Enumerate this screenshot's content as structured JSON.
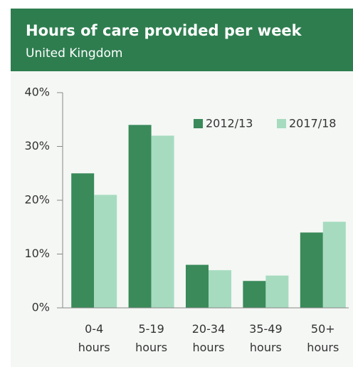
{
  "chart_data": {
    "type": "bar",
    "title": "Hours of care provided per week",
    "subtitle": "United Kingdom",
    "categories": [
      "0-4 hours",
      "5-19 hours",
      "20-34 hours",
      "35-49 hours",
      "50+ hours"
    ],
    "series": [
      {
        "name": "2012/13",
        "color": "#3a8a5a",
        "values": [
          25,
          34,
          8,
          5,
          14
        ]
      },
      {
        "name": "2017/18",
        "color": "#a6dbbf",
        "values": [
          21,
          32,
          7,
          6,
          16
        ]
      }
    ],
    "ylim": [
      0,
      40
    ],
    "yticks": [
      {
        "value": 0,
        "label": "0%"
      },
      {
        "value": 10,
        "label": "10%"
      },
      {
        "value": 20,
        "label": "20%"
      },
      {
        "value": 30,
        "label": "30%"
      },
      {
        "value": 40,
        "label": "40%"
      }
    ],
    "legend": "top-right"
  }
}
